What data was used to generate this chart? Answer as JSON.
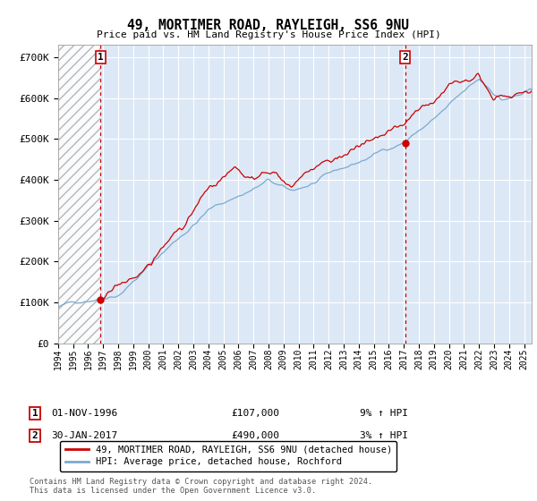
{
  "title": "49, MORTIMER ROAD, RAYLEIGH, SS6 9NU",
  "subtitle": "Price paid vs. HM Land Registry's House Price Index (HPI)",
  "ylim": [
    0,
    730000
  ],
  "xlim_start": 1994.0,
  "xlim_end": 2025.5,
  "sale1_date": 1996.83,
  "sale1_price": 107000,
  "sale1_label": "1",
  "sale2_date": 2017.08,
  "sale2_price": 490000,
  "sale2_label": "2",
  "hpi_color": "#7aaad0",
  "property_color": "#cc0000",
  "dashed_color": "#cc0000",
  "background_chart": "#dce8f5",
  "legend_label1": "49, MORTIMER ROAD, RAYLEIGH, SS6 9NU (detached house)",
  "legend_label2": "HPI: Average price, detached house, Rochford",
  "annotation1_date": "01-NOV-1996",
  "annotation1_price": "£107,000",
  "annotation1_hpi": "9% ↑ HPI",
  "annotation2_date": "30-JAN-2017",
  "annotation2_price": "£490,000",
  "annotation2_hpi": "3% ↑ HPI",
  "footer": "Contains HM Land Registry data © Crown copyright and database right 2024.\nThis data is licensed under the Open Government Licence v3.0."
}
